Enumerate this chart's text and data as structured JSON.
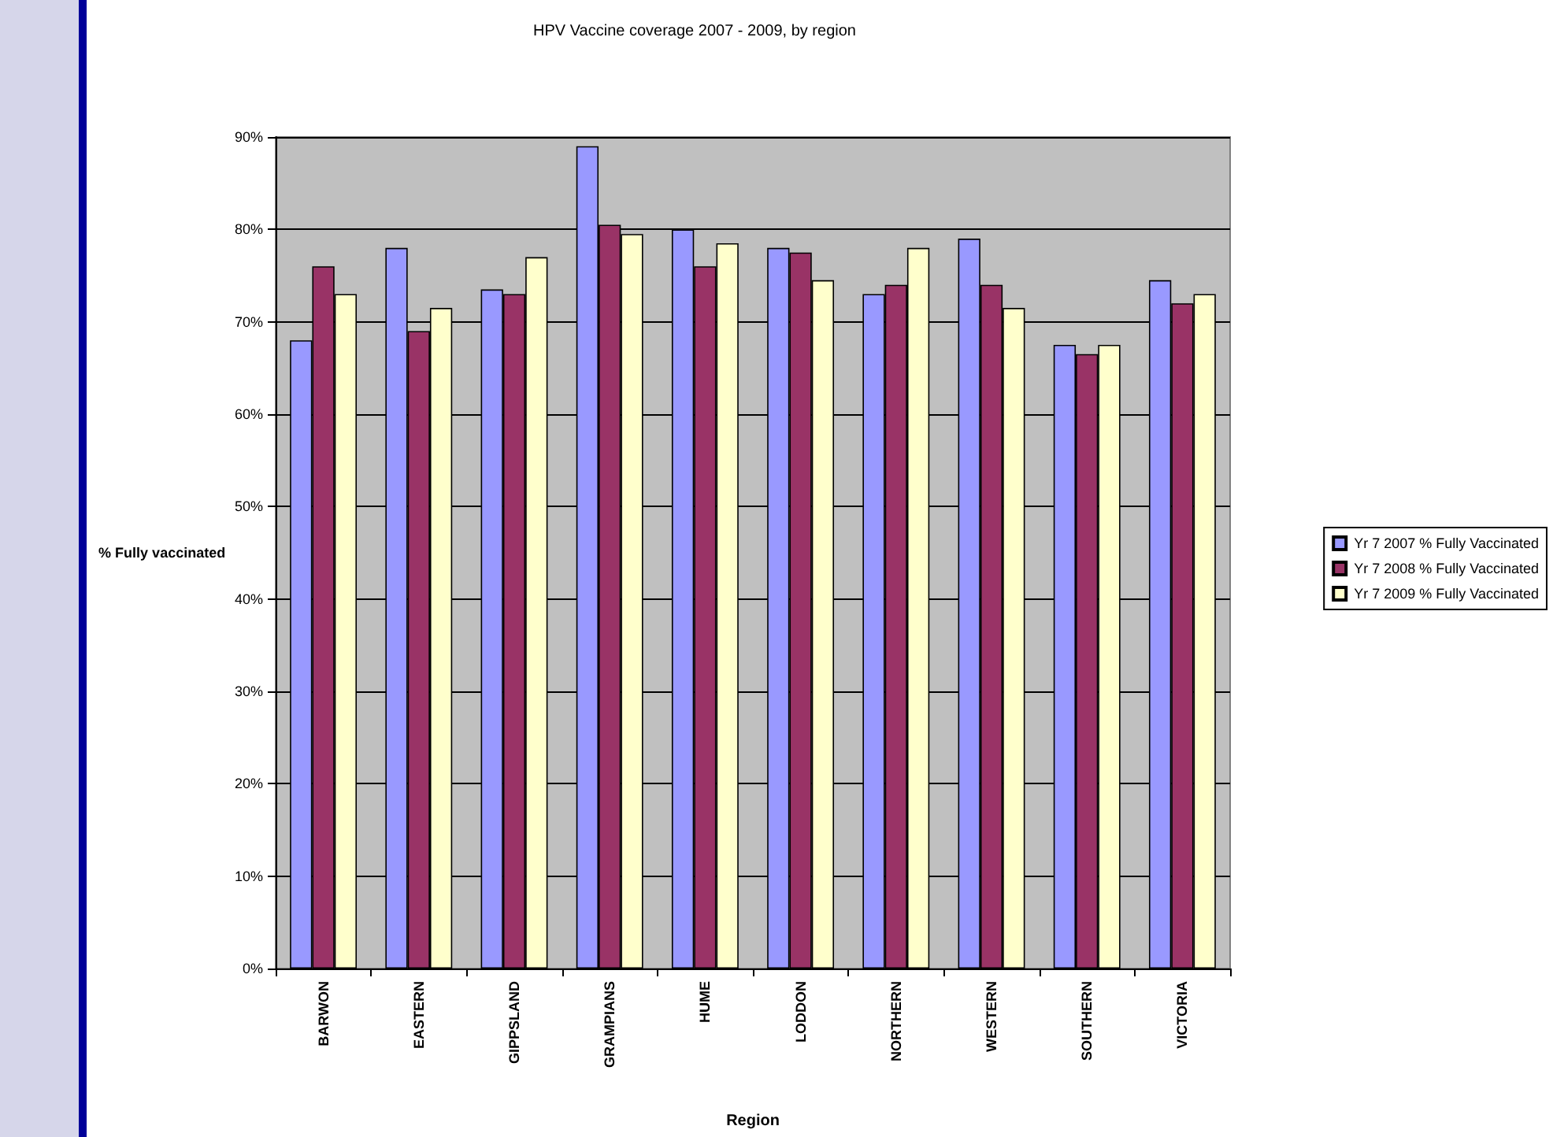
{
  "chart_data": {
    "type": "bar",
    "title": "HPV Vaccine coverage 2007 - 2009, by region",
    "xlabel": "Region",
    "ylabel": "% Fully vaccinated",
    "categories": [
      "BARWON",
      "EASTERN",
      "GIPPSLAND",
      "GRAMPIANS",
      "HUME",
      "LODDON",
      "NORTHERN",
      "WESTERN",
      "SOUTHERN",
      "VICTORIA"
    ],
    "series": [
      {
        "name": "Yr 7 2007 % Fully Vaccinated",
        "color": "#9999ff",
        "values": [
          68,
          78,
          73.5,
          89,
          80,
          78,
          73,
          79,
          67.5,
          74.5
        ]
      },
      {
        "name": "Yr 7 2008 % Fully Vaccinated",
        "color": "#993366",
        "values": [
          76,
          69,
          73,
          80.5,
          76,
          77.5,
          74,
          74,
          66.5,
          72
        ]
      },
      {
        "name": "Yr 7 2009 % Fully Vaccinated",
        "color": "#ffffcc",
        "values": [
          73,
          71.5,
          77,
          79.5,
          78.5,
          74.5,
          78,
          71.5,
          67.5,
          73
        ]
      }
    ],
    "ylim": [
      0,
      90
    ],
    "yticks": [
      {
        "value": 0,
        "label": "0%"
      },
      {
        "value": 10,
        "label": "10%"
      },
      {
        "value": 20,
        "label": "20%"
      },
      {
        "value": 30,
        "label": "30%"
      },
      {
        "value": 40,
        "label": "40%"
      },
      {
        "value": 50,
        "label": "50%"
      },
      {
        "value": 60,
        "label": "60%"
      },
      {
        "value": 70,
        "label": "70%"
      },
      {
        "value": 80,
        "label": "80%"
      },
      {
        "value": 90,
        "label": "90%"
      }
    ],
    "grid": "y",
    "legend": "right"
  }
}
